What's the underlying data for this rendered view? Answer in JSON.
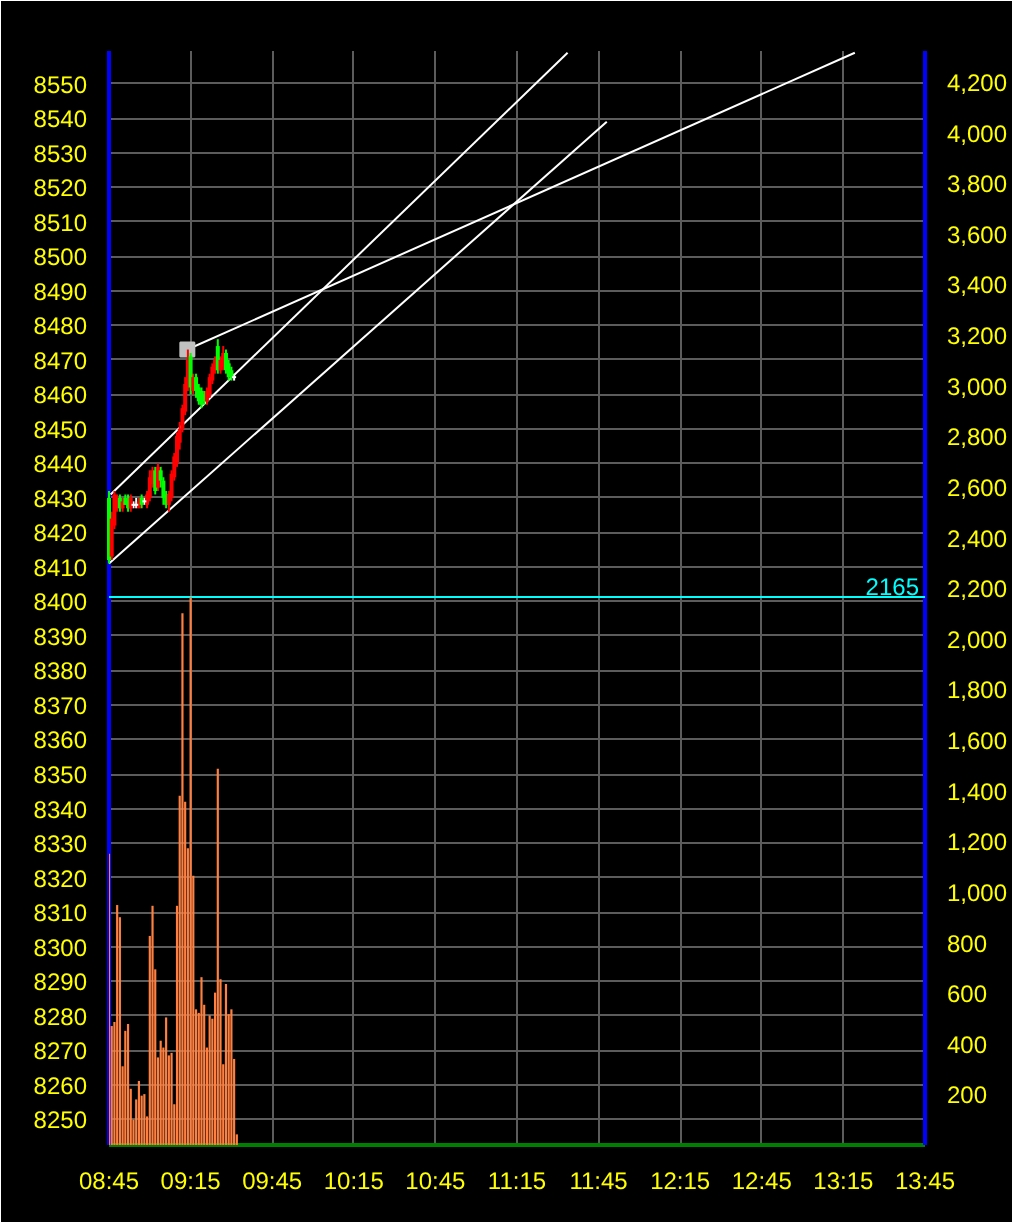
{
  "chart_data": {
    "type": "candlestick",
    "x": [
      8.75,
      8.7667,
      8.7833,
      8.8,
      8.8167,
      8.8333,
      8.85,
      8.8667,
      8.8833,
      8.9,
      8.9167,
      8.9333,
      8.95,
      8.9667,
      8.9833,
      9.0,
      9.0167,
      9.0333,
      9.05,
      9.0667,
      9.0833,
      9.1,
      9.1167,
      9.1333,
      9.15,
      9.1667,
      9.1833,
      9.2,
      9.2167,
      9.2333,
      9.25,
      9.2667,
      9.2833,
      9.3,
      9.3167,
      9.3333,
      9.35,
      9.3667,
      9.3833,
      9.4,
      9.4167,
      9.4333,
      9.45,
      9.4667,
      9.4833,
      9.5,
      9.5167
    ],
    "ohlc": [
      [
        8430,
        8432,
        8411,
        8412
      ],
      [
        8413,
        8426,
        8412,
        8424
      ],
      [
        8422,
        8432,
        8421,
        8431
      ],
      [
        8427,
        8431,
        8426,
        8430
      ],
      [
        8430,
        8431,
        8426,
        8427
      ],
      [
        8427,
        8430,
        8426,
        8429
      ],
      [
        8430,
        8431,
        8428,
        8428
      ],
      [
        8429,
        8431,
        8426,
        8427
      ],
      [
        8427,
        8431,
        8426,
        8430
      ],
      [
        8428,
        8429,
        8427,
        8428
      ],
      [
        8428,
        8430,
        8427,
        8428
      ],
      [
        8427,
        8430,
        8427,
        8429
      ],
      [
        8430,
        8431,
        8427,
        8428
      ],
      [
        8429,
        8430,
        8428,
        8429
      ],
      [
        8428,
        8432,
        8427,
        8431
      ],
      [
        8430,
        8438,
        8429,
        8436
      ],
      [
        8434,
        8439,
        8433,
        8438
      ],
      [
        8438,
        8439,
        8431,
        8432
      ],
      [
        8433,
        8440,
        8432,
        8439
      ],
      [
        8438,
        8439,
        8433,
        8435
      ],
      [
        8435,
        8436,
        8428,
        8430
      ],
      [
        8431,
        8432,
        8427,
        8428
      ],
      [
        8428,
        8432,
        8426,
        8431
      ],
      [
        8430,
        8438,
        8429,
        8437
      ],
      [
        8436,
        8443,
        8435,
        8442
      ],
      [
        8440,
        8449,
        8439,
        8448
      ],
      [
        8446,
        8452,
        8444,
        8450
      ],
      [
        8450,
        8457,
        8449,
        8456
      ],
      [
        8455,
        8465,
        8454,
        8463
      ],
      [
        8462,
        8473,
        8461,
        8470
      ],
      [
        8471,
        8472,
        8460,
        8462
      ],
      [
        8461,
        8466,
        8460,
        8465
      ],
      [
        8465,
        8466,
        8459,
        8461
      ],
      [
        8462,
        8463,
        8457,
        8458
      ],
      [
        8461,
        8462,
        8456,
        8457
      ],
      [
        8460,
        8461,
        8457,
        8458
      ],
      [
        8458,
        8462,
        8457,
        8461
      ],
      [
        8460,
        8466,
        8459,
        8465
      ],
      [
        8464,
        8469,
        8463,
        8468
      ],
      [
        8467,
        8471,
        8466,
        8470
      ],
      [
        8474,
        8476,
        8466,
        8467
      ],
      [
        8467,
        8471,
        8466,
        8470
      ],
      [
        8468,
        8474,
        8467,
        8472
      ],
      [
        8472,
        8473,
        8466,
        8467
      ],
      [
        8469,
        8470,
        8464,
        8465
      ],
      [
        8467,
        8468,
        8464,
        8465
      ],
      [
        8465,
        8466,
        8464,
        8465
      ]
    ],
    "colors": [
      "#00ff00",
      "#ff0000",
      "#ff0000",
      "#ff0000",
      "#00ff00",
      "#ff0000",
      "#00ff00",
      "#00ff00",
      "#ff0000",
      "#ffffff",
      "#ffffff",
      "#ff0000",
      "#00ff00",
      "#ffffff",
      "#ff0000",
      "#ff0000",
      "#ff0000",
      "#00ff00",
      "#ff0000",
      "#00ff00",
      "#00ff00",
      "#00ff00",
      "#ff0000",
      "#ff0000",
      "#ff0000",
      "#ff0000",
      "#ff0000",
      "#ff0000",
      "#ff0000",
      "#ff0000",
      "#00ff00",
      "#ff0000",
      "#00ff00",
      "#00ff00",
      "#00ff00",
      "#00ff00",
      "#ff0000",
      "#ff0000",
      "#ff0000",
      "#ff0000",
      "#00ff00",
      "#ff0000",
      "#ff0000",
      "#00ff00",
      "#00ff00",
      "#00ff00",
      "#ffffff"
    ],
    "series": [
      {
        "type": "bar",
        "axis": "y2",
        "color": "#ff8040",
        "x": [
          8.75,
          8.7667,
          8.7833,
          8.8,
          8.8167,
          8.8333,
          8.85,
          8.8667,
          8.8833,
          8.9,
          8.9167,
          8.9333,
          8.95,
          8.9667,
          8.9833,
          9.0,
          9.0167,
          9.0333,
          9.05,
          9.0667,
          9.0833,
          9.1,
          9.1167,
          9.1333,
          9.15,
          9.1667,
          9.1833,
          9.2,
          9.2167,
          9.2333,
          9.25,
          9.2667,
          9.2833,
          9.3,
          9.3167,
          9.3333,
          9.35,
          9.3667,
          9.3833,
          9.4,
          9.4167,
          9.4333,
          9.45,
          9.4667,
          9.4833,
          9.5,
          9.5167,
          9.5333
        ],
        "values": [
          1151,
          470,
          486,
          948,
          900,
          311,
          451,
          478,
          222,
          100,
          180,
          253,
          195,
          201,
          113,
          826,
          945,
          694,
          346,
          412,
          385,
          504,
          354,
          364,
          161,
          945,
          1380,
          2101,
          1356,
          1172,
          2165,
          1064,
          536,
          522,
          663,
          554,
          385,
          512,
          499,
          602,
          1486,
          655,
          319,
          636,
          517,
          536,
          340,
          42
        ]
      },
      {
        "type": "line",
        "color": "#ffffff",
        "x": [
          8.75,
          11.8
        ],
        "values": [
          8411,
          8539
        ]
      },
      {
        "type": "line",
        "color": "#ffffff",
        "x": [
          8.76,
          11.56
        ],
        "values": [
          8431,
          8559
        ]
      },
      {
        "type": "line",
        "color": "#ffffff",
        "x": [
          9.23,
          13.32
        ],
        "values": [
          8473,
          8559
        ]
      },
      {
        "type": "scatter",
        "marker": "square",
        "color": "#c0c0c0",
        "x": [
          9.23
        ],
        "values": [
          8473
        ]
      }
    ],
    "xlim": [
      8.75,
      13.75
    ],
    "xticks": [
      {
        "value": 8.75,
        "label": "08:45"
      },
      {
        "value": 9.25,
        "label": "09:15"
      },
      {
        "value": 9.75,
        "label": "09:45"
      },
      {
        "value": 10.25,
        "label": "10:15"
      },
      {
        "value": 10.75,
        "label": "10:45"
      },
      {
        "value": 11.25,
        "label": "11:15"
      },
      {
        "value": 11.75,
        "label": "11:45"
      },
      {
        "value": 12.25,
        "label": "12:15"
      },
      {
        "value": 12.75,
        "label": "12:45"
      },
      {
        "value": 13.25,
        "label": "13:15"
      },
      {
        "value": 13.75,
        "label": "13:45"
      }
    ],
    "ylim": [
      8242.5,
      8559.5
    ],
    "yticks": [
      8250,
      8260,
      8270,
      8280,
      8290,
      8300,
      8310,
      8320,
      8330,
      8340,
      8350,
      8360,
      8370,
      8380,
      8390,
      8400,
      8410,
      8420,
      8430,
      8440,
      8450,
      8460,
      8470,
      8480,
      8490,
      8500,
      8510,
      8520,
      8530,
      8540,
      8550
    ],
    "y2lim": [
      0,
      4322
    ],
    "y2ticks": [
      200,
      400,
      600,
      800,
      {
        "value": 1000,
        "label": "1,000"
      },
      {
        "value": 1200,
        "label": "1,200"
      },
      {
        "value": 1400,
        "label": "1,400"
      },
      {
        "value": 1600,
        "label": "1,600"
      },
      {
        "value": 1800,
        "label": "1,800"
      },
      {
        "value": 2000,
        "label": "2,000"
      },
      {
        "value": 2200,
        "label": "2,200"
      },
      {
        "value": 2400,
        "label": "2,400"
      },
      {
        "value": 2600,
        "label": "2,600"
      },
      {
        "value": 2800,
        "label": "2,800"
      },
      {
        "value": 3000,
        "label": "3,000"
      },
      {
        "value": 3200,
        "label": "3,200"
      },
      {
        "value": 3400,
        "label": "3,400"
      },
      {
        "value": 3600,
        "label": "3,600"
      },
      {
        "value": 3800,
        "label": "3,800"
      },
      {
        "value": 4000,
        "label": "4,000"
      },
      {
        "value": 4200,
        "label": "4,200"
      }
    ],
    "ref_lines": [
      {
        "axis": "y2",
        "value": 2165,
        "label": "2165",
        "color": "#00ffff"
      }
    ],
    "grid": true
  }
}
